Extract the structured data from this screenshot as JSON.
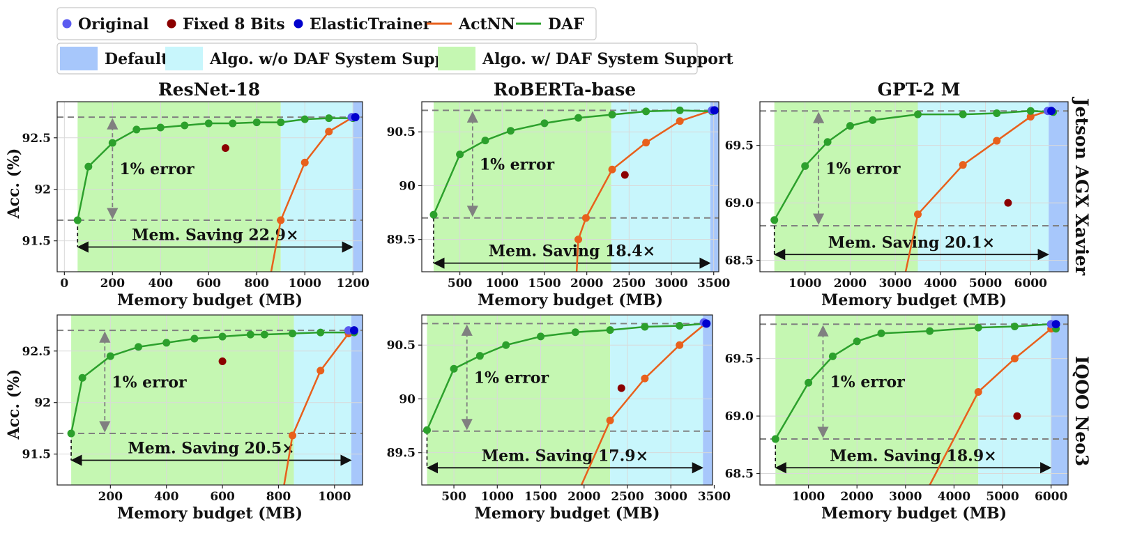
{
  "legend": {
    "row1": [
      {
        "label": "Original",
        "kind": "dot",
        "color": "#5b5bf0"
      },
      {
        "label": "Fixed 8 Bits",
        "kind": "dot",
        "color": "#8b0000"
      },
      {
        "label": "ElasticTrainer",
        "kind": "dot",
        "color": "#0000cd"
      },
      {
        "label": "ActNN",
        "kind": "line",
        "color": "#e8601c"
      },
      {
        "label": "DAF",
        "kind": "line",
        "color": "#2ca02c"
      }
    ],
    "row2": [
      {
        "label": "Default",
        "color": "#a7c7fb"
      },
      {
        "label": "Algo. w/o DAF System Support",
        "color": "#c8f6fc"
      },
      {
        "label": "Algo. w/ DAF System Support",
        "color": "#c5f7b2"
      }
    ]
  },
  "columns": [
    "ResNet-18",
    "RoBERTa-base",
    "GPT-2 M"
  ],
  "rows": [
    "Jetson AGX Xavier",
    "IQOO Neo3"
  ],
  "xlabel": "Memory budget (MB)",
  "ylabel": "Acc. (%)",
  "error_label": "1% error",
  "colors": {
    "daf": "#2ca02c",
    "actnn": "#e8601c",
    "fixed8": "#8b0000",
    "original": "#5b5bf0",
    "elastic": "#0000cd",
    "ref": "#808080"
  },
  "chart_data": [
    {
      "type": "line",
      "title": "ResNet-18",
      "row": 0,
      "col": 0,
      "xlim": [
        -30,
        1240
      ],
      "ylim": [
        91.2,
        92.85
      ],
      "xticks": [
        0,
        200,
        400,
        600,
        800,
        1000,
        1200
      ],
      "xtick_labels": [
        "0",
        "200",
        "400",
        "600",
        "800",
        "1000",
        "1200"
      ],
      "yticks": [
        91.5,
        92,
        92.5
      ],
      "ytick_labels": [
        "91.5",
        "92",
        "92.5"
      ],
      "regions": {
        "green": [
          55,
          900
        ],
        "cyan": [
          900,
          1200
        ],
        "blue": [
          1200,
          1240
        ]
      },
      "ref_top": 92.7,
      "ref_bottom": 91.7,
      "error_x": 200,
      "saving": {
        "label": "Mem. Saving 22.9×",
        "x0": 55,
        "x1": 1200,
        "y": 91.44
      },
      "daf": {
        "x": [
          55,
          100,
          200,
          300,
          400,
          500,
          600,
          700,
          800,
          900,
          1000,
          1100,
          1200
        ],
        "y": [
          91.7,
          92.22,
          92.45,
          92.58,
          92.6,
          92.62,
          92.64,
          92.64,
          92.65,
          92.65,
          92.68,
          92.69,
          92.69
        ]
      },
      "actnn": {
        "x": [
          860,
          900,
          1000,
          1100,
          1200
        ],
        "y": [
          91.2,
          91.7,
          92.26,
          92.56,
          92.7
        ]
      },
      "fixed8": {
        "x": [
          670
        ],
        "y": [
          92.4
        ]
      },
      "original": {
        "x": [
          1195
        ],
        "y": [
          92.7
        ]
      },
      "elastic": {
        "x": [
          1210
        ],
        "y": [
          92.7
        ]
      }
    },
    {
      "type": "line",
      "title": "RoBERTa-base",
      "row": 0,
      "col": 1,
      "xlim": [
        50,
        3560
      ],
      "ylim": [
        89.2,
        90.78
      ],
      "xticks": [
        500,
        1000,
        1500,
        2000,
        2500,
        3000,
        3500
      ],
      "xtick_labels": [
        "500",
        "1000",
        "1500",
        "2000",
        "2500",
        "3000",
        "3500"
      ],
      "yticks": [
        89.5,
        90,
        90.5
      ],
      "ytick_labels": [
        "89.5",
        "90",
        "90.5"
      ],
      "regions": {
        "green": [
          190,
          2290
        ],
        "cyan": [
          2290,
          3460
        ],
        "blue": [
          3460,
          3560
        ]
      },
      "ref_top": 90.7,
      "ref_bottom": 89.7,
      "error_x": 650,
      "saving": {
        "label": "Mem. Saving 18.4×",
        "x0": 190,
        "x1": 3460,
        "y": 89.28
      },
      "daf": {
        "x": [
          190,
          500,
          800,
          1100,
          1500,
          1900,
          2300,
          2700,
          3100,
          3480
        ],
        "y": [
          89.73,
          90.29,
          90.42,
          90.51,
          90.58,
          90.63,
          90.66,
          90.69,
          90.7,
          90.69
        ]
      },
      "actnn": {
        "x": [
          1880,
          1900,
          1990,
          2300,
          2700,
          3100,
          3480
        ],
        "y": [
          89.2,
          89.5,
          89.7,
          90.15,
          90.4,
          90.6,
          90.7
        ]
      },
      "fixed8": {
        "x": [
          2450
        ],
        "y": [
          90.1
        ]
      },
      "original": {
        "x": [
          3480
        ],
        "y": [
          90.7
        ]
      },
      "elastic": {
        "x": [
          3510
        ],
        "y": [
          90.7
        ]
      }
    },
    {
      "type": "line",
      "title": "GPT-2 M",
      "row": 0,
      "col": 2,
      "xlim": [
        0,
        6830
      ],
      "ylim": [
        68.4,
        69.88
      ],
      "xticks": [
        1000,
        2000,
        3000,
        4000,
        5000,
        6000
      ],
      "xtick_labels": [
        "1000",
        "2000",
        "3000",
        "4000",
        "5000",
        "6000"
      ],
      "yticks": [
        68.5,
        69.0,
        69.5
      ],
      "ytick_labels": [
        "68.5",
        "69.0",
        "69.5"
      ],
      "regions": {
        "green": [
          320,
          3500
        ],
        "cyan": [
          3500,
          6400
        ],
        "blue": [
          6400,
          6830
        ]
      },
      "ref_top": 69.8,
      "ref_bottom": 68.8,
      "error_x": 1300,
      "saving": {
        "label": "Mem. Saving  20.1×",
        "x0": 320,
        "x1": 6400,
        "y": 68.55
      },
      "daf": {
        "x": [
          320,
          1000,
          1500,
          2000,
          2500,
          3500,
          4500,
          5250,
          6000,
          6500
        ],
        "y": [
          68.85,
          69.32,
          69.53,
          69.67,
          69.72,
          69.77,
          69.77,
          69.78,
          69.8,
          69.79
        ]
      },
      "actnn": {
        "x": [
          3230,
          3500,
          4500,
          5250,
          6000,
          6380
        ],
        "y": [
          68.4,
          68.9,
          69.33,
          69.54,
          69.75,
          69.8
        ]
      },
      "fixed8": {
        "x": [
          5500
        ],
        "y": [
          69.0
        ]
      },
      "original": {
        "x": [
          6380
        ],
        "y": [
          69.8
        ]
      },
      "elastic": {
        "x": [
          6460
        ],
        "y": [
          69.8
        ]
      }
    },
    {
      "type": "line",
      "title": "",
      "row": 1,
      "col": 0,
      "xlim": [
        10,
        1100
      ],
      "ylim": [
        91.2,
        92.85
      ],
      "xticks": [
        200,
        400,
        600,
        800,
        1000
      ],
      "xtick_labels": [
        "200",
        "400",
        "600",
        "800",
        "1000"
      ],
      "yticks": [
        91.5,
        92,
        92.5
      ],
      "ytick_labels": [
        "91.5",
        "92",
        "92.5"
      ],
      "regions": {
        "green": [
          60,
          855
        ],
        "cyan": [
          855,
          1060
        ],
        "blue": [
          1060,
          1100
        ]
      },
      "ref_top": 92.7,
      "ref_bottom": 91.7,
      "error_x": 180,
      "saving": {
        "label": "Mem. Saving 20.5×",
        "x0": 60,
        "x1": 1060,
        "y": 91.44
      },
      "daf": {
        "x": [
          60,
          100,
          200,
          300,
          400,
          500,
          600,
          700,
          750,
          850,
          950,
          1070
        ],
        "y": [
          91.7,
          92.24,
          92.45,
          92.54,
          92.58,
          92.62,
          92.64,
          92.66,
          92.66,
          92.67,
          92.68,
          92.68
        ]
      },
      "actnn": {
        "x": [
          820,
          850,
          950,
          1050
        ],
        "y": [
          91.2,
          91.68,
          92.31,
          92.67
        ]
      },
      "fixed8": {
        "x": [
          600
        ],
        "y": [
          92.4
        ]
      },
      "original": {
        "x": [
          1050
        ],
        "y": [
          92.7
        ]
      },
      "elastic": {
        "x": [
          1070
        ],
        "y": [
          92.7
        ]
      }
    },
    {
      "type": "line",
      "title": "",
      "row": 1,
      "col": 1,
      "xlim": [
        130,
        3480
      ],
      "ylim": [
        89.2,
        90.78
      ],
      "xticks": [
        500,
        1000,
        1500,
        2000,
        2500,
        3000,
        3500
      ],
      "xtick_labels": [
        "500",
        "1000",
        "1500",
        "2000",
        "2500",
        "3000",
        "3500"
      ],
      "yticks": [
        89.5,
        90,
        90.5
      ],
      "ytick_labels": [
        "89.5",
        "90",
        "90.5"
      ],
      "regions": {
        "green": [
          190,
          2300
        ],
        "cyan": [
          2300,
          3370
        ],
        "blue": [
          3370,
          3480
        ]
      },
      "ref_top": 90.7,
      "ref_bottom": 89.7,
      "error_x": 650,
      "saving": {
        "label": "Mem. Saving 17.9×",
        "x0": 190,
        "x1": 3370,
        "y": 89.36
      },
      "daf": {
        "x": [
          190,
          500,
          800,
          1100,
          1500,
          1900,
          2300,
          2700,
          3100,
          3400
        ],
        "y": [
          89.71,
          90.28,
          90.4,
          90.5,
          90.58,
          90.62,
          90.64,
          90.67,
          90.68,
          90.7
        ]
      },
      "actnn": {
        "x": [
          1970,
          2300,
          2700,
          3100,
          3400
        ],
        "y": [
          89.2,
          89.8,
          90.19,
          90.5,
          90.7
        ]
      },
      "fixed8": {
        "x": [
          2430
        ],
        "y": [
          90.1
        ]
      },
      "original": {
        "x": [
          3380
        ],
        "y": [
          90.71
        ]
      },
      "elastic": {
        "x": [
          3410
        ],
        "y": [
          90.7
        ]
      }
    },
    {
      "type": "line",
      "title": "",
      "row": 1,
      "col": 2,
      "xlim": [
        0,
        6350
      ],
      "ylim": [
        68.4,
        69.88
      ],
      "xticks": [
        1000,
        2000,
        3000,
        4000,
        5000,
        6000
      ],
      "xtick_labels": [
        "1000",
        "2000",
        "3000",
        "4000",
        "5000",
        "6000"
      ],
      "yticks": [
        68.5,
        69.0,
        69.5
      ],
      "ytick_labels": [
        "68.5",
        "69.0",
        "69.5"
      ],
      "regions": {
        "green": [
          320,
          4500
        ],
        "cyan": [
          4500,
          6000
        ],
        "blue": [
          6000,
          6350
        ]
      },
      "ref_top": 69.8,
      "ref_bottom": 68.8,
      "error_x": 1300,
      "saving": {
        "label": "Mem. Saving 18.9×",
        "x0": 320,
        "x1": 6000,
        "y": 68.55
      },
      "daf": {
        "x": [
          320,
          1000,
          1500,
          2000,
          2500,
          3500,
          4500,
          5250,
          6000,
          6100
        ],
        "y": [
          68.8,
          69.29,
          69.52,
          69.65,
          69.72,
          69.74,
          69.77,
          69.78,
          69.8,
          69.76
        ]
      },
      "actnn": {
        "x": [
          3500,
          4500,
          5250,
          6000
        ],
        "y": [
          68.4,
          69.21,
          69.5,
          69.76
        ]
      },
      "fixed8": {
        "x": [
          5300
        ],
        "y": [
          69.0
        ]
      },
      "original": {
        "x": [
          6000
        ],
        "y": [
          69.8
        ]
      },
      "elastic": {
        "x": [
          6100
        ],
        "y": [
          69.8
        ]
      }
    }
  ]
}
